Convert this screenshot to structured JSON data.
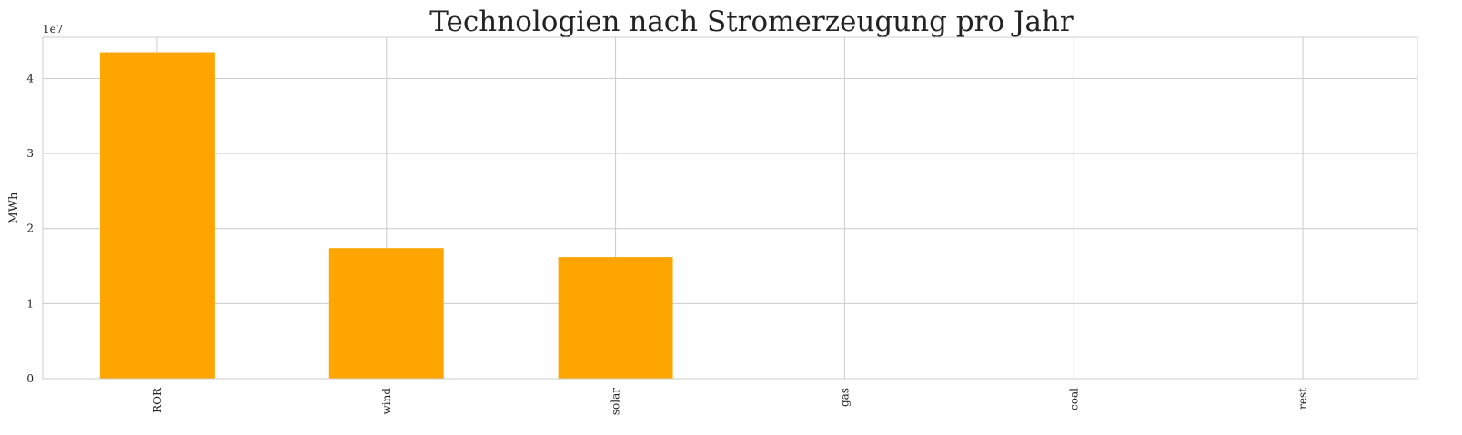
{
  "chart_data": {
    "type": "bar",
    "title": "Technologien nach Stromerzeugung pro Jahr",
    "xlabel": "",
    "ylabel": "MWh",
    "y_offset_label": "1e7",
    "categories": [
      "ROR",
      "wind",
      "solar",
      "gas",
      "coal",
      "rest"
    ],
    "values": [
      43500000,
      17400000,
      16200000,
      0,
      0,
      0
    ],
    "ylim": [
      0,
      45500000
    ],
    "yticks": [
      0,
      10000000,
      20000000,
      30000000,
      40000000
    ],
    "ytick_labels": [
      "0",
      "1",
      "2",
      "3",
      "4"
    ],
    "bar_color": "#ffa500",
    "grid": true,
    "legend": "none",
    "x_tick_rotation": "vertical"
  },
  "colors": {
    "grid": "#cccccc",
    "spine": "#cccccc",
    "text": "#222222",
    "background": "#ffffff"
  }
}
